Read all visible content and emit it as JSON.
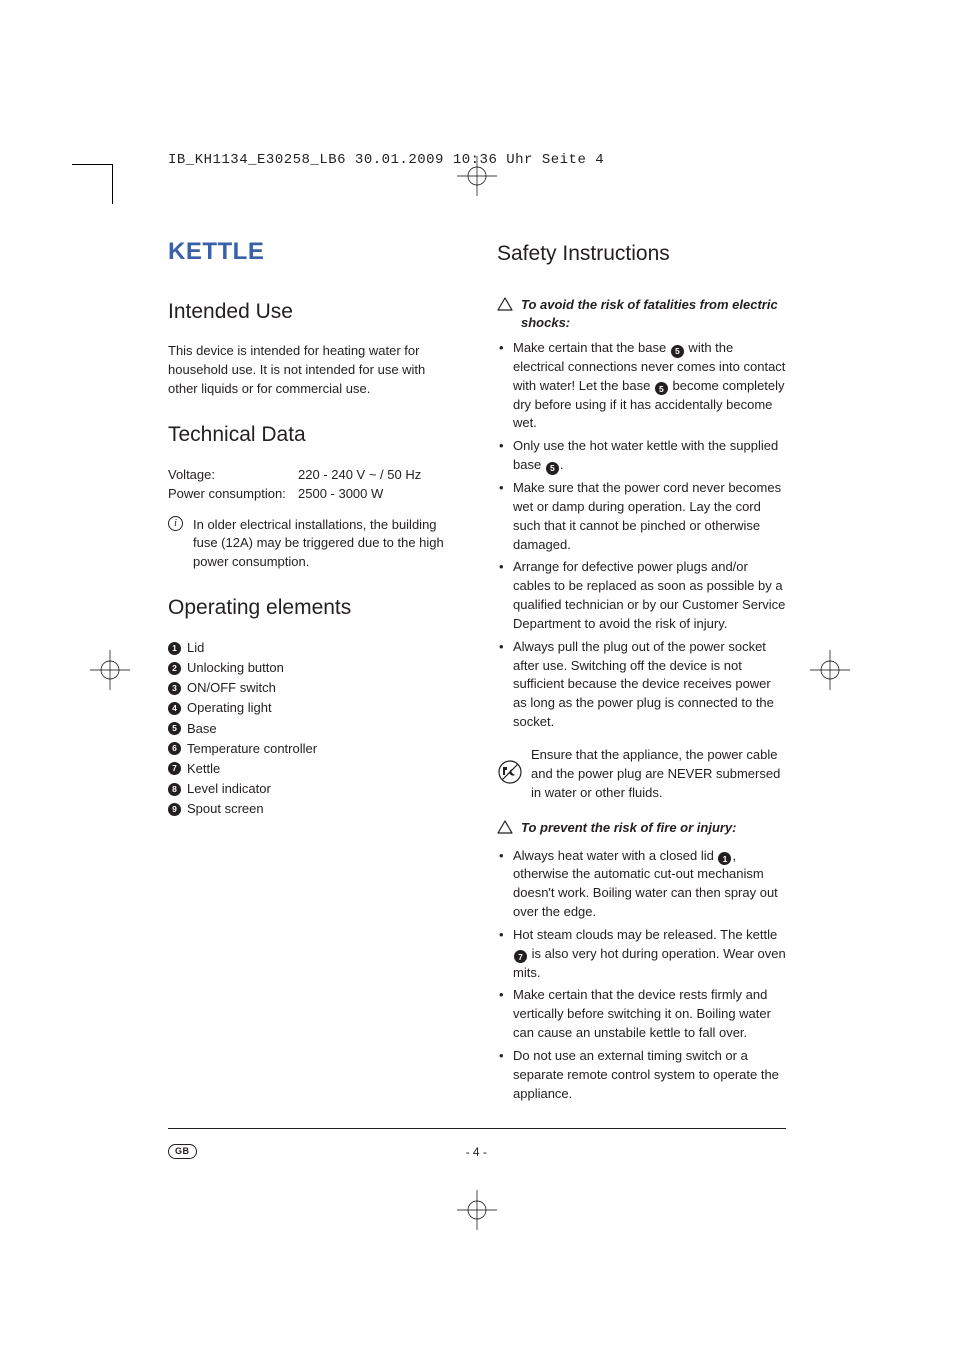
{
  "header": "IB_KH1134_E30258_LB6  30.01.2009  10:36 Uhr  Seite 4",
  "title": "KETTLE",
  "left": {
    "intended": {
      "heading": "Intended Use",
      "body": "This device is intended for heating water for household use. It is not intended for use with other liquids or for commercial use."
    },
    "technical": {
      "heading": "Technical Data",
      "rows": [
        {
          "label": "Voltage:",
          "value": "220 - 240 V ~ / 50 Hz"
        },
        {
          "label": "Power consumption:",
          "value": "2500 - 3000 W"
        }
      ],
      "note": "In older electrical installations, the building fuse (12A) may be triggered due to the high power consumption."
    },
    "elements": {
      "heading": "Operating elements",
      "items": [
        {
          "n": "1",
          "label": "Lid"
        },
        {
          "n": "2",
          "label": "Unlocking button"
        },
        {
          "n": "3",
          "label": "ON/OFF switch"
        },
        {
          "n": "4",
          "label": "Operating light"
        },
        {
          "n": "5",
          "label": "Base"
        },
        {
          "n": "6",
          "label": "Temperature controller"
        },
        {
          "n": "7",
          "label": "Kettle"
        },
        {
          "n": "8",
          "label": "Level indicator"
        },
        {
          "n": "9",
          "label": "Spout screen"
        }
      ]
    }
  },
  "right": {
    "heading": "Safety Instructions",
    "warn1": "To avoid the risk of fatalities from electric shocks:",
    "b1a": "Make certain that the base ",
    "b1b": " with the electrical connections never comes into contact with water! Let the base ",
    "b1c": " become completely dry before using if it has accidentally become wet.",
    "b2a": "Only use the hot water kettle with the supplied base ",
    "b2b": ".",
    "b3": "Make sure that the power cord never becomes wet or damp during operation. Lay the cord such that it cannot be pinched or otherwise damaged.",
    "b4": "Arrange for defective power plugs and/or cables to be replaced as soon as possible by a qualified technician or by our Customer Service Department to avoid the risk of injury.",
    "b5": "Always pull the plug out of the power socket after use. Switching off the device is not sufficient because the device receives power as long as the power plug is connected to the socket.",
    "nosub": "Ensure that the appliance, the power cable and the power plug are NEVER submersed in water or other fluids.",
    "warn2": "To prevent the risk of fire or injury:",
    "c1a": "Always heat water with a closed lid ",
    "c1b": ", otherwise the automatic cut-out mechanism doesn't work. Boiling water can then spray out over the edge.",
    "c2a": "Hot steam clouds may be released. The kettle ",
    "c2b": " is also very hot during operation. Wear oven mits.",
    "c3": "Make certain that the device rests firmly and vertically before switching it on. Boiling water can cause an unstabile kettle to fall over.",
    "c4": "Do not use an external timing switch or a separate remote control system to operate the appliance."
  },
  "footer": {
    "country": "GB",
    "page": "- 4 -"
  }
}
